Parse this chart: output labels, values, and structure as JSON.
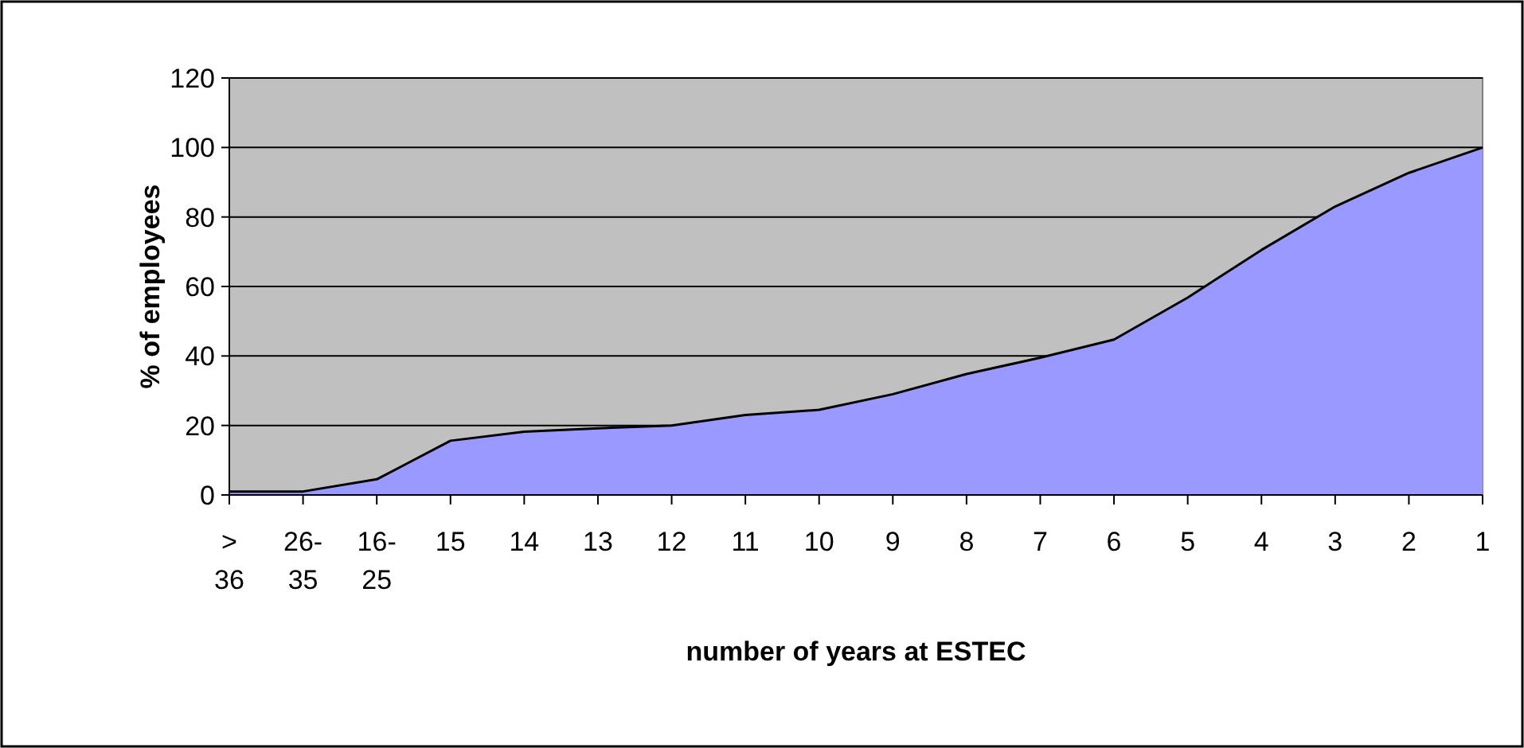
{
  "chart_data": {
    "type": "area",
    "xlabel": "number of years at ESTEC",
    "ylabel": "% of employees",
    "categories": [
      "> 36",
      "26-35",
      "16-25",
      "15",
      "14",
      "13",
      "12",
      "11",
      "10",
      "9",
      "8",
      "7",
      "6",
      "5",
      "4",
      "3",
      "2",
      "1"
    ],
    "series": [
      {
        "color": "#9999ff",
        "values": [
          1,
          1,
          4.5,
          15.6,
          18.2,
          19.2,
          20,
          23,
          24.5,
          29,
          34.8,
          39.5,
          44.7,
          56.8,
          70.5,
          83,
          92.7,
          100
        ]
      }
    ],
    "ylim": [
      0,
      120
    ],
    "yticks": [
      0,
      20,
      40,
      60,
      80,
      100,
      120
    ],
    "grid": "y"
  }
}
